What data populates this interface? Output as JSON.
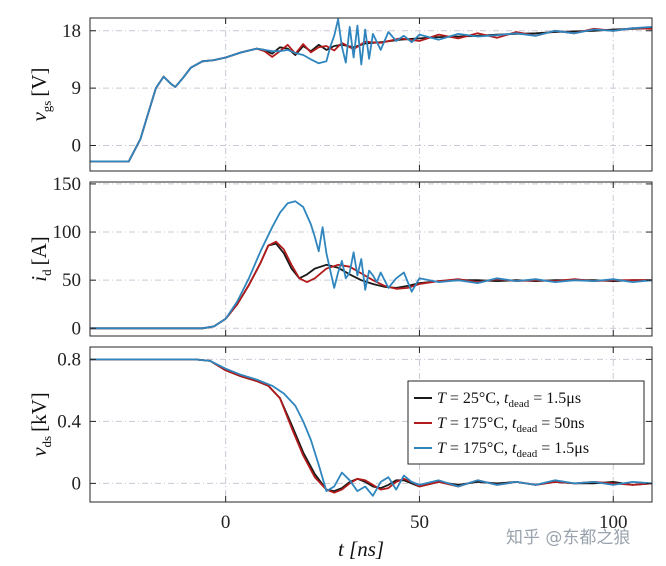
{
  "chart_data": [
    {
      "type": "line",
      "ylabel": "v",
      "ylabel_sub": "gs",
      "yunit": "[V]",
      "ylim": [
        -4,
        20
      ],
      "yticks": [
        0,
        9,
        18
      ],
      "xlim": [
        -35,
        110
      ],
      "series": [
        {
          "name": "T = 25°C, t_dead = 1.5μs",
          "color": "#1a1a1a",
          "x": [
            -35,
            -25,
            -22,
            -20,
            -18,
            -16,
            -14,
            -13,
            -11,
            -9,
            -6,
            -3,
            0,
            4,
            8,
            10,
            12,
            14,
            16,
            18,
            20,
            22,
            24,
            26,
            28,
            30,
            33,
            36,
            40,
            45,
            50,
            55,
            60,
            65,
            70,
            75,
            80,
            85,
            90,
            95,
            100,
            105,
            110
          ],
          "y": [
            -2.5,
            -2.5,
            1,
            5,
            9,
            10.8,
            9.6,
            9.2,
            10.6,
            12.2,
            13.2,
            13.4,
            13.8,
            14.6,
            15.2,
            15,
            14.4,
            15.4,
            15.2,
            14.2,
            15.6,
            14.8,
            15.8,
            15,
            15.6,
            15.8,
            15.4,
            16,
            16.2,
            16.6,
            16.8,
            17,
            17.1,
            17.2,
            17.4,
            17.5,
            17.6,
            17.8,
            17.9,
            18,
            18.2,
            18.3,
            18.4
          ]
        },
        {
          "name": "T = 175°C, t_dead = 50ns",
          "color": "#b31b1b",
          "x": [
            -35,
            -25,
            -22,
            -20,
            -18,
            -16,
            -14,
            -13,
            -11,
            -9,
            -6,
            -3,
            0,
            4,
            8,
            10,
            12,
            14,
            16,
            18,
            20,
            22,
            24,
            26,
            28,
            30,
            33,
            36,
            40,
            45,
            50,
            55,
            60,
            65,
            70,
            75,
            80,
            85,
            90,
            95,
            100,
            105,
            110
          ],
          "y": [
            -2.5,
            -2.5,
            1,
            5,
            9,
            10.8,
            9.6,
            9.2,
            10.6,
            12.2,
            13.2,
            13.4,
            13.8,
            14.6,
            15.2,
            14.8,
            13.9,
            14.8,
            15.8,
            14.4,
            15.9,
            14.6,
            15.4,
            15.6,
            14.9,
            16.1,
            15.1,
            16.3,
            16.1,
            16.8,
            16.4,
            17.4,
            16.8,
            17.6,
            16.9,
            17.8,
            17.2,
            18,
            17.6,
            18.3,
            18,
            18.4,
            18.3
          ]
        },
        {
          "name": "T = 175°C, t_dead = 1.5μs",
          "color": "#2f86be",
          "x": [
            -35,
            -25,
            -22,
            -20,
            -18,
            -16,
            -14,
            -13,
            -11,
            -9,
            -6,
            -3,
            0,
            4,
            8,
            10,
            12,
            14,
            16,
            18,
            20,
            22,
            24,
            26,
            27,
            28,
            29,
            30,
            31,
            32,
            33,
            34,
            35,
            36,
            37,
            38,
            40,
            42,
            44,
            46,
            48,
            50,
            55,
            60,
            65,
            70,
            75,
            80,
            85,
            90,
            95,
            100,
            105,
            110
          ],
          "y": [
            -2.5,
            -2.5,
            1,
            5,
            9,
            10.8,
            9.6,
            9.2,
            10.6,
            12.2,
            13.2,
            13.4,
            13.8,
            14.6,
            15.2,
            15,
            14.8,
            14.8,
            15,
            14.5,
            14.2,
            13.5,
            12.9,
            13.2,
            15.5,
            17.2,
            19.8,
            15.5,
            13,
            18.6,
            13.8,
            18.8,
            12.7,
            18.2,
            13.6,
            17.5,
            15,
            17.8,
            16.4,
            17.2,
            16.2,
            17.4,
            16.6,
            17.5,
            17.1,
            17.3,
            17.6,
            17.2,
            18,
            17.6,
            18.2,
            18,
            18.4,
            18.6
          ]
        }
      ]
    },
    {
      "type": "line",
      "ylabel": "i",
      "ylabel_sub": "d",
      "yunit": "[A]",
      "ylim": [
        -8,
        152
      ],
      "yticks": [
        0,
        50,
        100,
        150
      ],
      "xlim": [
        -35,
        110
      ],
      "series": [
        {
          "name": "T = 25°C, t_dead = 1.5μs",
          "color": "#1a1a1a",
          "x": [
            -35,
            -10,
            -6,
            -3,
            0,
            3,
            6,
            9,
            11,
            13,
            15,
            17,
            19,
            21,
            23,
            26,
            29,
            32,
            35,
            38,
            41,
            44,
            47,
            50,
            55,
            60,
            65,
            70,
            75,
            80,
            85,
            90,
            95,
            100,
            105,
            110
          ],
          "y": [
            0,
            0,
            0,
            2,
            10,
            25,
            45,
            68,
            86,
            88,
            78,
            62,
            52,
            56,
            62,
            66,
            63,
            56,
            50,
            46,
            43,
            42,
            44,
            47,
            49,
            50,
            50,
            49,
            50,
            49,
            50,
            50,
            50,
            49,
            50,
            50
          ]
        },
        {
          "name": "T = 175°C, t_dead = 50ns",
          "color": "#b31b1b",
          "x": [
            -35,
            -10,
            -6,
            -3,
            0,
            3,
            6,
            9,
            11,
            13,
            15,
            17,
            19,
            21,
            23,
            26,
            29,
            32,
            35,
            38,
            41,
            44,
            47,
            50,
            55,
            60,
            65,
            70,
            75,
            80,
            85,
            90,
            95,
            100,
            105,
            110
          ],
          "y": [
            0,
            0,
            0,
            2,
            10,
            25,
            45,
            68,
            86,
            90,
            82,
            66,
            52,
            48,
            52,
            62,
            66,
            64,
            57,
            50,
            44,
            41,
            42,
            46,
            49,
            51,
            48,
            51,
            49,
            50,
            49,
            51,
            49,
            50,
            50,
            50
          ]
        },
        {
          "name": "T = 175°C, t_dead = 1.5μs",
          "color": "#2f86be",
          "x": [
            -35,
            -10,
            -6,
            -3,
            0,
            3,
            6,
            9,
            12,
            14,
            16,
            18,
            20,
            22,
            23,
            24,
            25,
            26,
            27,
            28,
            29,
            30,
            31,
            32,
            33,
            34,
            35,
            36,
            37,
            38,
            39,
            40,
            42,
            44,
            46,
            48,
            50,
            55,
            60,
            65,
            70,
            75,
            80,
            85,
            90,
            95,
            100,
            105,
            110
          ],
          "y": [
            0,
            0,
            0,
            2,
            10,
            28,
            52,
            80,
            105,
            120,
            130,
            132,
            126,
            108,
            95,
            80,
            105,
            78,
            60,
            42,
            58,
            70,
            52,
            58,
            79,
            55,
            72,
            40,
            60,
            55,
            48,
            58,
            42,
            52,
            58,
            38,
            52,
            48,
            50,
            47,
            52,
            49,
            51,
            48,
            50,
            49,
            51,
            48,
            50
          ]
        }
      ]
    },
    {
      "type": "line",
      "ylabel": "v",
      "ylabel_sub": "ds",
      "yunit": "[kV]",
      "ylim": [
        -0.12,
        0.88
      ],
      "yticks": [
        0,
        0.4,
        0.8
      ],
      "ytick_labels": [
        "0",
        "0.4",
        "0.8"
      ],
      "xlim": [
        -35,
        110
      ],
      "xticks": [
        0,
        50,
        100
      ],
      "xlabel": "t [ns]",
      "series": [
        {
          "name": "T = 25°C, t_dead = 1.5μs",
          "color": "#1a1a1a",
          "x": [
            -35,
            -8,
            -4,
            0,
            4,
            8,
            11,
            14,
            17,
            20,
            23,
            26,
            28,
            30,
            32,
            34,
            36,
            38,
            40,
            42,
            44,
            46,
            48,
            50,
            55,
            60,
            65,
            70,
            75,
            80,
            85,
            90,
            95,
            100,
            105,
            110
          ],
          "y": [
            0.8,
            0.8,
            0.79,
            0.73,
            0.69,
            0.66,
            0.63,
            0.55,
            0.38,
            0.2,
            0.06,
            -0.04,
            -0.05,
            -0.03,
            0.01,
            0.03,
            0.01,
            -0.02,
            -0.03,
            -0.01,
            0.02,
            0.02,
            0,
            -0.02,
            0.01,
            -0.01,
            0.01,
            0,
            0.01,
            -0.01,
            0.01,
            0,
            0,
            0.01,
            -0.01,
            0
          ]
        },
        {
          "name": "T = 175°C, t_dead = 50ns",
          "color": "#b31b1b",
          "x": [
            -35,
            -8,
            -4,
            0,
            4,
            8,
            11,
            14,
            17,
            20,
            23,
            26,
            28,
            30,
            32,
            34,
            36,
            38,
            40,
            42,
            44,
            46,
            48,
            50,
            55,
            60,
            65,
            70,
            75,
            80,
            85,
            90,
            95,
            100,
            105,
            110
          ],
          "y": [
            0.8,
            0.8,
            0.79,
            0.73,
            0.69,
            0.66,
            0.63,
            0.55,
            0.36,
            0.18,
            0.04,
            -0.04,
            -0.06,
            -0.04,
            0,
            0.03,
            0.02,
            -0.01,
            -0.04,
            -0.03,
            0.01,
            0.03,
            0.01,
            -0.02,
            0.01,
            -0.02,
            0.02,
            -0.01,
            0.01,
            -0.01,
            0.01,
            0,
            0.01,
            0,
            -0.01,
            0
          ]
        },
        {
          "name": "T = 175°C, t_dead = 1.5μs",
          "color": "#2f86be",
          "x": [
            -35,
            -8,
            -4,
            0,
            4,
            8,
            12,
            15,
            18,
            20,
            22,
            24,
            26,
            28,
            30,
            32,
            34,
            36,
            38,
            40,
            42,
            44,
            46,
            48,
            50,
            55,
            60,
            65,
            70,
            75,
            80,
            85,
            90,
            95,
            100,
            105,
            110
          ],
          "y": [
            0.8,
            0.8,
            0.79,
            0.74,
            0.7,
            0.67,
            0.63,
            0.58,
            0.5,
            0.4,
            0.28,
            0.12,
            -0.05,
            -0.02,
            0.07,
            0.02,
            -0.05,
            -0.02,
            -0.08,
            0.01,
            0.04,
            -0.04,
            0.05,
            0.01,
            -0.01,
            0.02,
            -0.02,
            0.02,
            -0.01,
            0.01,
            -0.01,
            0.02,
            0,
            0.01,
            -0.01,
            0.01,
            0
          ]
        }
      ]
    }
  ],
  "legend": {
    "entries": [
      {
        "color": "#1a1a1a",
        "prefix": "T",
        "temp": " = 25°C, ",
        "t": "t",
        "sub": "dead",
        "val": " = 1.5μs"
      },
      {
        "color": "#b31b1b",
        "prefix": "T",
        "temp": " = 175°C, ",
        "t": "t",
        "sub": "dead",
        "val": " = 50ns"
      },
      {
        "color": "#2f86be",
        "prefix": "T",
        "temp": " = 175°C, ",
        "t": "t",
        "sub": "dead",
        "val": " = 1.5μs"
      }
    ]
  },
  "watermark": "知乎 @东都之狼"
}
